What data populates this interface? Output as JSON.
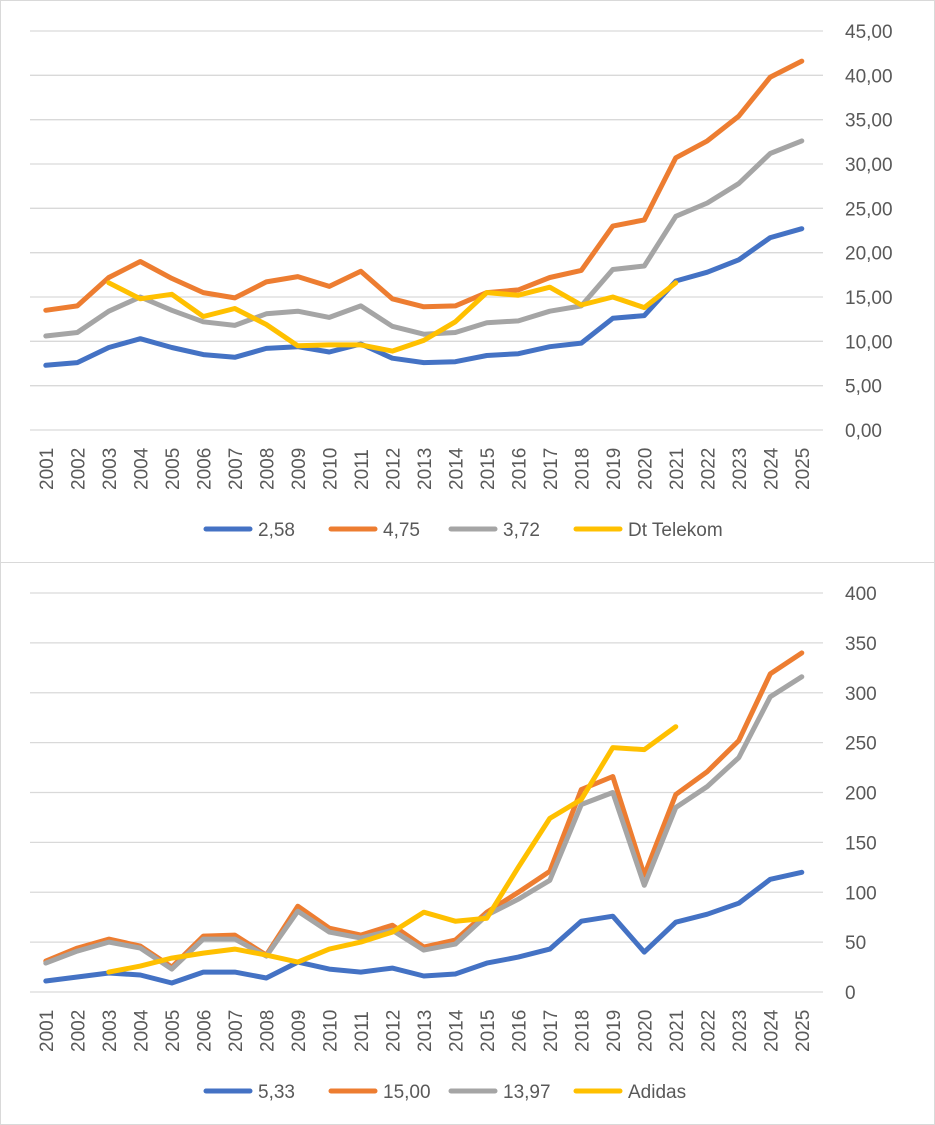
{
  "chart_data": [
    {
      "type": "line",
      "categories": [
        "2001",
        "2002",
        "2003",
        "2004",
        "2005",
        "2006",
        "2007",
        "2008",
        "2009",
        "2010",
        "2011",
        "2012",
        "2013",
        "2014",
        "2015",
        "2016",
        "2017",
        "2018",
        "2019",
        "2020",
        "2021",
        "2022",
        "2023",
        "2024",
        "2025"
      ],
      "ylim": [
        0,
        45
      ],
      "ytick_labels": [
        "0,00",
        "5,00",
        "10,00",
        "15,00",
        "20,00",
        "25,00",
        "30,00",
        "35,00",
        "40,00",
        "45,00"
      ],
      "grid": true,
      "y_axis_side": "right",
      "legend_position": "bottom",
      "series": [
        {
          "name": "2,58",
          "color": "#4472C4",
          "values": [
            7.3,
            7.6,
            9.3,
            10.3,
            9.3,
            8.5,
            8.2,
            9.2,
            9.4,
            8.8,
            9.7,
            8.1,
            7.6,
            7.7,
            8.4,
            8.6,
            9.4,
            9.8,
            12.6,
            12.9,
            16.8,
            17.8,
            19.2,
            21.7,
            22.7
          ]
        },
        {
          "name": "4,75",
          "color": "#ED7D31",
          "values": [
            13.5,
            14.0,
            17.2,
            19.0,
            17.1,
            15.5,
            14.9,
            16.7,
            17.3,
            16.2,
            17.9,
            14.8,
            13.9,
            14.0,
            15.5,
            15.8,
            17.2,
            18.0,
            23.0,
            23.7,
            30.7,
            32.6,
            35.4,
            39.8,
            41.6
          ]
        },
        {
          "name": "3,72",
          "color": "#A5A5A5",
          "values": [
            10.6,
            11.0,
            13.4,
            15.0,
            13.5,
            12.2,
            11.8,
            13.1,
            13.4,
            12.7,
            14.0,
            11.7,
            10.8,
            11.0,
            12.1,
            12.3,
            13.4,
            14.0,
            18.1,
            18.5,
            24.1,
            25.6,
            27.8,
            31.2,
            32.6
          ]
        },
        {
          "name": "Dt Telekom",
          "color": "#FFC000",
          "values": [
            null,
            null,
            16.6,
            14.8,
            15.3,
            12.8,
            13.7,
            11.9,
            9.5,
            9.6,
            9.6,
            8.9,
            10.1,
            12.2,
            15.5,
            15.2,
            16.1,
            14.1,
            15.0,
            13.8,
            16.6,
            null,
            null,
            null,
            null
          ]
        }
      ]
    },
    {
      "type": "line",
      "categories": [
        "2001",
        "2002",
        "2003",
        "2004",
        "2005",
        "2006",
        "2007",
        "2008",
        "2009",
        "2010",
        "2011",
        "2012",
        "2013",
        "2014",
        "2015",
        "2016",
        "2017",
        "2018",
        "2019",
        "2020",
        "2021",
        "2022",
        "2023",
        "2024",
        "2025"
      ],
      "ylim": [
        0,
        400
      ],
      "ytick_labels": [
        "0",
        "50",
        "100",
        "150",
        "200",
        "250",
        "300",
        "350",
        "400"
      ],
      "grid": true,
      "y_axis_side": "right",
      "legend_position": "bottom",
      "series": [
        {
          "name": "5,33",
          "color": "#4472C4",
          "values": [
            11,
            15,
            19,
            17,
            9,
            20,
            20,
            14,
            30,
            23,
            20,
            24,
            16,
            18,
            29,
            35,
            43,
            71,
            76,
            40,
            70,
            78,
            89,
            113,
            120
          ]
        },
        {
          "name": "15,00",
          "color": "#ED7D31",
          "values": [
            31,
            44,
            53,
            46,
            25,
            56,
            57,
            37,
            86,
            64,
            57,
            67,
            45,
            52,
            80,
            100,
            121,
            203,
            216,
            117,
            198,
            221,
            252,
            319,
            340
          ]
        },
        {
          "name": "13,97",
          "color": "#A5A5A5",
          "values": [
            29,
            41,
            50,
            44,
            23,
            53,
            53,
            36,
            81,
            60,
            54,
            62,
            42,
            48,
            77,
            93,
            112,
            188,
            200,
            107,
            185,
            206,
            235,
            296,
            316
          ]
        },
        {
          "name": "Adidas",
          "color": "#FFC000",
          "values": [
            null,
            null,
            20,
            26,
            34,
            39,
            43,
            37,
            30,
            43,
            50,
            60,
            80,
            71,
            74,
            125,
            174,
            193,
            245,
            243,
            266,
            null,
            null,
            null,
            null
          ]
        }
      ]
    }
  ]
}
